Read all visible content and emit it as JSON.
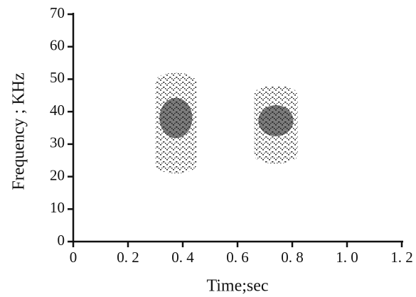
{
  "chart_data": {
    "type": "spectrogram",
    "x_label": "Time;sec",
    "y_label": "Frequency ; KHz",
    "xlim": [
      0,
      1.2
    ],
    "xticks": [
      0,
      {
        "value": 0.2,
        "label": "0. 2"
      },
      {
        "value": 0.4,
        "label": "0. 4"
      },
      {
        "value": 0.6,
        "label": "0. 6"
      },
      {
        "value": 0.8,
        "label": "0. 8"
      },
      {
        "value": 1.0,
        "label": "1. 0"
      },
      {
        "value": 1.2,
        "label": "1. 2"
      }
    ],
    "ylim": [
      0,
      70
    ],
    "yticks": [
      0,
      10,
      20,
      30,
      40,
      50,
      60,
      70
    ],
    "color": "#111111",
    "calls": [
      {
        "time": [
          0.3,
          0.45
        ],
        "frequency": [
          21,
          52
        ]
      },
      {
        "time": [
          0.66,
          0.82
        ],
        "frequency": [
          24,
          48
        ]
      }
    ]
  }
}
